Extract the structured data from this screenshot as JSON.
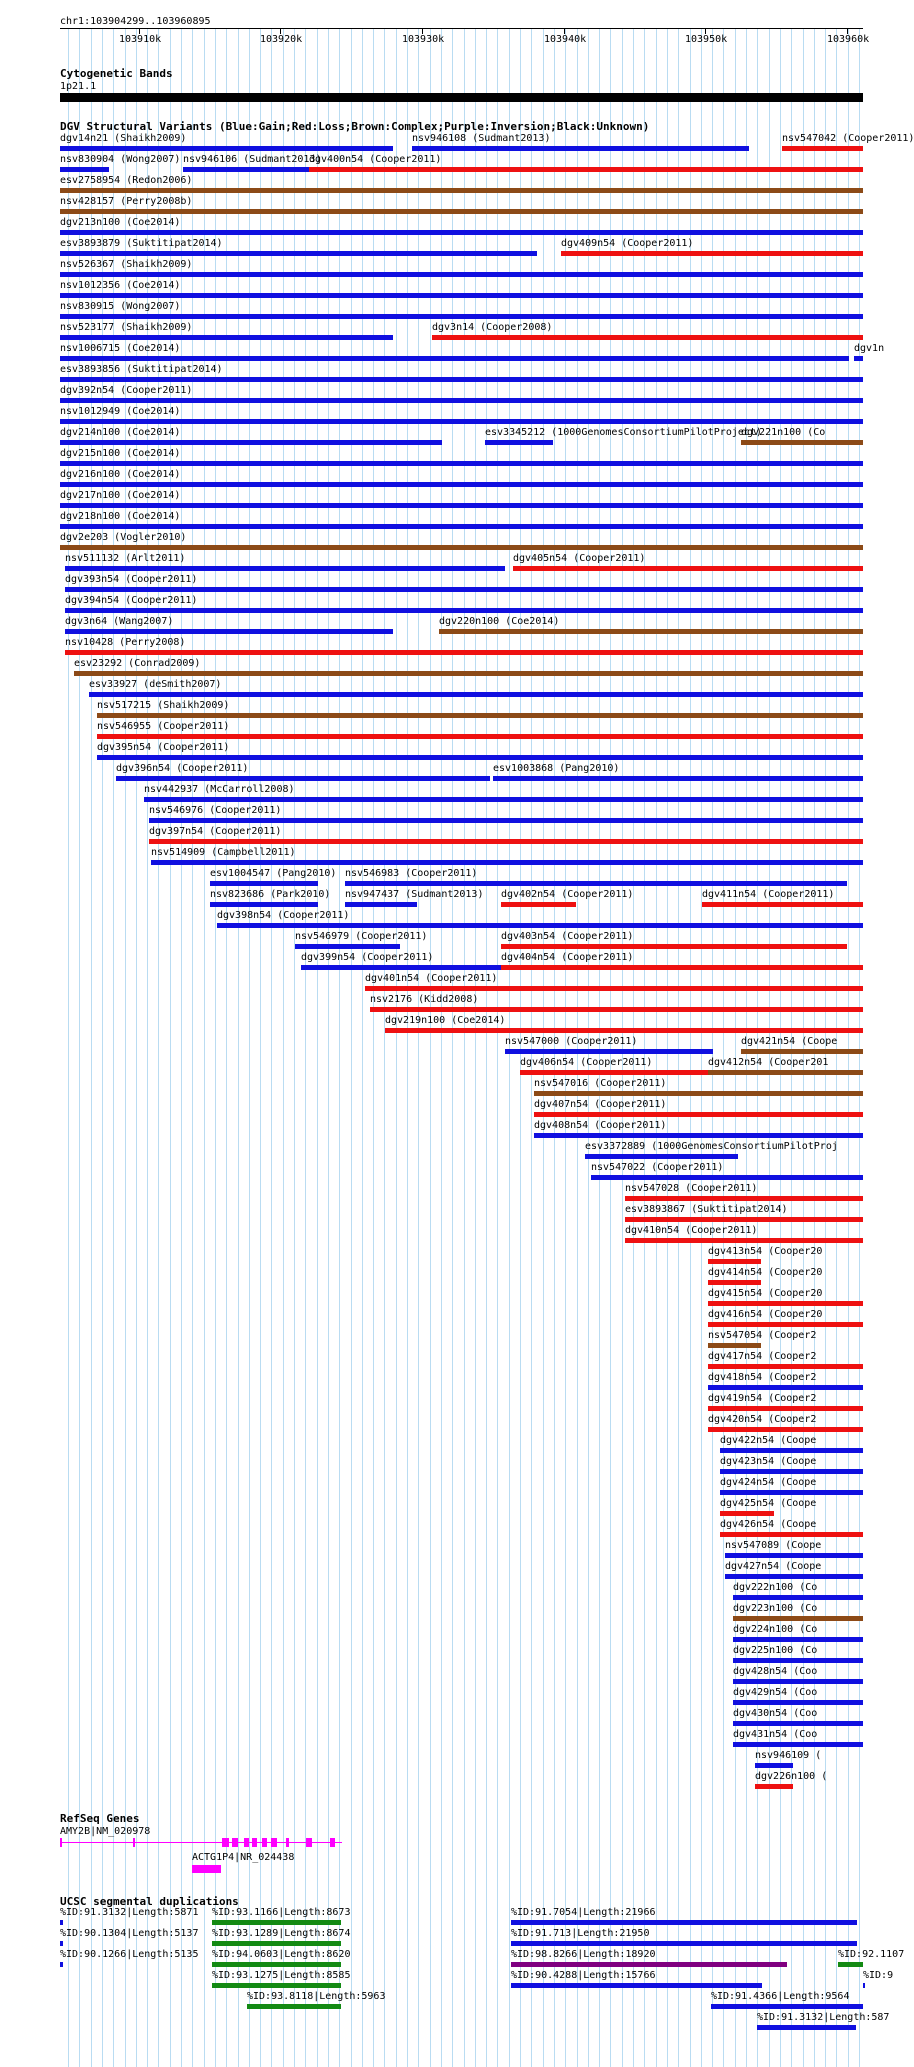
{
  "ruler": {
    "position": "chr1:103904299..103960895",
    "ticks": [
      "103910k",
      "103920k",
      "103930k",
      "103940k",
      "103950k",
      "103960k"
    ]
  },
  "cyto": {
    "title": "Cytogenetic Bands",
    "band": "1p21.1"
  },
  "dgv": {
    "title": "DGV Structural Variants (Blue:Gain;Red:Loss;Brown:Complex;Purple:Inversion;Black:Unknown)",
    "legend_colors": {
      "Gain": "#1010e0",
      "Loss": "#ee1111",
      "Complex": "#8c4a17",
      "Inversion": "#800080",
      "Unknown": "#000000"
    },
    "rows": [
      [
        {
          "label": "dgv14n21 (Shaikh2009)",
          "s": 0,
          "e": 37,
          "t": "Gain"
        },
        {
          "label": "nsv946108 (Sudmant2013)",
          "s": 39.1,
          "e": 76.5,
          "t": "Gain"
        },
        {
          "label": "nsv547042 (Cooper2011)",
          "s": 80.1,
          "e": 89.1,
          "t": "Loss"
        }
      ],
      [
        {
          "label": "nsv830904 (Wong2007)",
          "s": 0,
          "e": 5.4,
          "t": "Gain"
        },
        {
          "label": "nsv946106 (Sudmant2013)",
          "s": 13.6,
          "e": 27.6,
          "t": "Gain"
        },
        {
          "label": "dgv400n54 (Cooper2011)",
          "s": 27.6,
          "e": 89.1,
          "t": "Loss"
        }
      ],
      [
        {
          "label": "esv2758954 (Redon2006)",
          "s": 0,
          "e": 89.1,
          "t": "Complex"
        }
      ],
      [
        {
          "label": "nsv428157 (Perry2008b)",
          "s": 0,
          "e": 89.1,
          "t": "Complex"
        }
      ],
      [
        {
          "label": "dgv213n100 (Coe2014)",
          "s": 0,
          "e": 89.1,
          "t": "Gain"
        }
      ],
      [
        {
          "label": "esv3893879 (Suktitipat2014)",
          "s": 0,
          "e": 52.9,
          "t": "Gain"
        },
        {
          "label": "dgv409n54 (Cooper2011)",
          "s": 55.6,
          "e": 89.1,
          "t": "Loss"
        }
      ],
      [
        {
          "label": "nsv526367 (Shaikh2009)",
          "s": 0,
          "e": 89.1,
          "t": "Gain"
        }
      ],
      [
        {
          "label": "nsv1012356 (Coe2014)",
          "s": 0,
          "e": 89.1,
          "t": "Gain"
        }
      ],
      [
        {
          "label": "nsv830915 (Wong2007)",
          "s": 0,
          "e": 89.1,
          "t": "Gain"
        }
      ],
      [
        {
          "label": "nsv523177 (Shaikh2009)",
          "s": 0,
          "e": 37,
          "t": "Gain"
        },
        {
          "label": "dgv3n14 (Cooper2008)",
          "s": 41.3,
          "e": 89.1,
          "t": "Loss"
        }
      ],
      [
        {
          "label": "nsv1006715 (Coe2014)",
          "s": 0,
          "e": 87.6,
          "t": "Gain"
        },
        {
          "label": "dgv1n",
          "s": 88.1,
          "e": 89.1,
          "t": "Gain"
        }
      ],
      [
        {
          "label": "esv3893856 (Suktitipat2014)",
          "s": 0,
          "e": 89.1,
          "t": "Gain"
        }
      ],
      [
        {
          "label": "dgv392n54 (Cooper2011)",
          "s": 0,
          "e": 89.1,
          "t": "Gain"
        }
      ],
      [
        {
          "label": "nsv1012949 (Coe2014)",
          "s": 0,
          "e": 89.1,
          "t": "Gain"
        }
      ],
      [
        {
          "label": "dgv214n100 (Coe2014)",
          "s": 0,
          "e": 42.4,
          "t": "Gain"
        },
        {
          "label": "esv3345212 (1000GenomesConsortiumPilotProject)",
          "s": 47.2,
          "e": 54.7,
          "t": "Gain"
        },
        {
          "label": "dgv221n100 (Co",
          "s": 75.6,
          "e": 89.1,
          "t": "Complex"
        }
      ],
      [
        {
          "label": "dgv215n100 (Coe2014)",
          "s": 0,
          "e": 89.1,
          "t": "Gain"
        }
      ],
      [
        {
          "label": "dgv216n100 (Coe2014)",
          "s": 0,
          "e": 89.1,
          "t": "Gain"
        }
      ],
      [
        {
          "label": "dgv217n100 (Coe2014)",
          "s": 0,
          "e": 89.1,
          "t": "Gain"
        }
      ],
      [
        {
          "label": "dgv218n100 (Coe2014)",
          "s": 0,
          "e": 89.1,
          "t": "Gain"
        }
      ],
      [
        {
          "label": "dgv2e203 (Vogler2010)",
          "s": 0,
          "e": 89.1,
          "t": "Complex"
        }
      ],
      [
        {
          "label": "nsv511132 (Arlt2011)",
          "s": 0.6,
          "e": 49.4,
          "t": "Gain"
        },
        {
          "label": "dgv405n54 (Cooper2011)",
          "s": 50.3,
          "e": 89.1,
          "t": "Loss"
        }
      ],
      [
        {
          "label": "dgv393n54 (Cooper2011)",
          "s": 0.6,
          "e": 89.1,
          "t": "Gain"
        }
      ],
      [
        {
          "label": "dgv394n54 (Cooper2011)",
          "s": 0.6,
          "e": 89.1,
          "t": "Gain"
        }
      ],
      [
        {
          "label": "dgv3n64 (Wang2007)",
          "s": 0.6,
          "e": 37,
          "t": "Gain"
        },
        {
          "label": "dgv220n100 (Coe2014)",
          "s": 42.1,
          "e": 89.1,
          "t": "Complex"
        }
      ],
      [
        {
          "label": "nsv10428 (Perry2008)",
          "s": 0.6,
          "e": 89.1,
          "t": "Loss"
        }
      ],
      [
        {
          "label": "esv23292 (Conrad2009)",
          "s": 1.5,
          "e": 89.1,
          "t": "Complex"
        }
      ],
      [
        {
          "label": "esv33927 (deSmith2007)",
          "s": 3.2,
          "e": 89.1,
          "t": "Gain"
        }
      ],
      [
        {
          "label": "nsv517215 (Shaikh2009)",
          "s": 4.1,
          "e": 89.1,
          "t": "Complex"
        }
      ],
      [
        {
          "label": "nsv546955 (Cooper2011)",
          "s": 4.1,
          "e": 89.1,
          "t": "Loss"
        }
      ],
      [
        {
          "label": "dgv395n54 (Cooper2011)",
          "s": 4.1,
          "e": 89.1,
          "t": "Gain"
        }
      ],
      [
        {
          "label": "dgv396n54 (Cooper2011)",
          "s": 6.2,
          "e": 47.7,
          "t": "Gain"
        },
        {
          "label": "esv1003868 (Pang2010)",
          "s": 48.1,
          "e": 89.1,
          "t": "Gain"
        }
      ],
      [
        {
          "label": "nsv442937 (McCarroll2008)",
          "s": 9.3,
          "e": 89.1,
          "t": "Gain"
        }
      ],
      [
        {
          "label": "nsv546976 (Cooper2011)",
          "s": 9.9,
          "e": 89.1,
          "t": "Gain"
        }
      ],
      [
        {
          "label": "dgv397n54 (Cooper2011)",
          "s": 9.9,
          "e": 89.1,
          "t": "Loss"
        }
      ],
      [
        {
          "label": "nsv514909 (Campbell2011)",
          "s": 10.1,
          "e": 89.1,
          "t": "Gain"
        }
      ],
      [
        {
          "label": "esv1004547 (Pang2010)",
          "s": 16.6,
          "e": 28.6,
          "t": "Gain"
        },
        {
          "label": "nsv546983 (Cooper2011)",
          "s": 31.6,
          "e": 87.4,
          "t": "Gain"
        }
      ],
      [
        {
          "label": "nsv823686 (Park2010)",
          "s": 16.6,
          "e": 28.6,
          "t": "Gain"
        },
        {
          "label": "nsv947437 (Sudmant2013)",
          "s": 31.6,
          "e": 39.6,
          "t": "Gain"
        },
        {
          "label": "dgv402n54 (Cooper2011)",
          "s": 48.9,
          "e": 57.3,
          "t": "Loss"
        },
        {
          "label": "dgv411n54 (Cooper2011)",
          "s": 71.2,
          "e": 89.1,
          "t": "Loss"
        }
      ],
      [
        {
          "label": "dgv398n54 (Cooper2011)",
          "s": 17.4,
          "e": 89.1,
          "t": "Gain"
        }
      ],
      [
        {
          "label": "nsv546979 (Cooper2011)",
          "s": 26.1,
          "e": 37.7,
          "t": "Gain"
        },
        {
          "label": "dgv403n54 (Cooper2011)",
          "s": 48.9,
          "e": 87.4,
          "t": "Loss"
        }
      ],
      [
        {
          "label": "dgv399n54 (Cooper2011)",
          "s": 26.8,
          "e": 89.1,
          "t": "Gain"
        },
        {
          "label": "dgv404n54 (Cooper2011)",
          "s": 48.9,
          "e": 89.1,
          "t": "Loss"
        }
      ],
      [
        {
          "label": "dgv401n54 (Cooper2011)",
          "s": 33.9,
          "e": 89.1,
          "t": "Loss"
        }
      ],
      [
        {
          "label": "nsv2176 (Kidd2008)",
          "s": 34.4,
          "e": 89.1,
          "t": "Loss"
        }
      ],
      [
        {
          "label": "dgv219n100 (Coe2014)",
          "s": 36.1,
          "e": 89.1,
          "t": "Loss"
        }
      ],
      [
        {
          "label": "nsv547000 (Cooper2011)",
          "s": 49.4,
          "e": 72.5,
          "t": "Gain"
        },
        {
          "label": "dgv421n54 (Coope",
          "s": 75.6,
          "e": 89.1,
          "t": "Complex"
        }
      ],
      [
        {
          "label": "dgv406n54 (Cooper2011)",
          "s": 51,
          "e": 72.5,
          "t": "Loss"
        },
        {
          "label": "dgv412n54 (Cooper201",
          "s": 71.9,
          "e": 89.1,
          "t": "Complex"
        }
      ],
      [
        {
          "label": "nsv547016 (Cooper2011)",
          "s": 52.6,
          "e": 89.1,
          "t": "Complex"
        }
      ],
      [
        {
          "label": "dgv407n54 (Cooper2011)",
          "s": 52.6,
          "e": 89.1,
          "t": "Loss"
        }
      ],
      [
        {
          "label": "dgv408n54 (Cooper2011)",
          "s": 52.6,
          "e": 89.1,
          "t": "Gain"
        }
      ],
      [
        {
          "label": "esv3372889 (1000GenomesConsortiumPilotProj",
          "s": 58.3,
          "e": 75.2,
          "t": "Gain"
        }
      ],
      [
        {
          "label": "nsv547022 (Cooper2011)",
          "s": 58.9,
          "e": 89.1,
          "t": "Gain"
        }
      ],
      [
        {
          "label": "nsv547028 (Cooper2011)",
          "s": 62.7,
          "e": 89.1,
          "t": "Loss"
        }
      ],
      [
        {
          "label": "esv3893867 (Suktitipat2014)",
          "s": 62.7,
          "e": 89.1,
          "t": "Loss"
        }
      ],
      [
        {
          "label": "dgv410n54 (Cooper2011)",
          "s": 62.7,
          "e": 89.1,
          "t": "Loss"
        }
      ],
      [
        {
          "label": "dgv413n54 (Cooper20",
          "s": 71.9,
          "e": 77.8,
          "t": "Loss"
        }
      ],
      [
        {
          "label": "dgv414n54 (Cooper20",
          "s": 71.9,
          "e": 77.8,
          "t": "Loss"
        }
      ],
      [
        {
          "label": "dgv415n54 (Cooper20",
          "s": 71.9,
          "e": 89.1,
          "t": "Loss"
        }
      ],
      [
        {
          "label": "dgv416n54 (Cooper20",
          "s": 71.9,
          "e": 89.1,
          "t": "Loss"
        }
      ],
      [
        {
          "label": "nsv547054 (Cooper2",
          "s": 71.9,
          "e": 77.8,
          "t": "Complex"
        }
      ],
      [
        {
          "label": "dgv417n54 (Cooper2",
          "s": 71.9,
          "e": 89.1,
          "t": "Loss"
        }
      ],
      [
        {
          "label": "dgv418n54 (Cooper2",
          "s": 71.9,
          "e": 89.1,
          "t": "Gain"
        }
      ],
      [
        {
          "label": "dgv419n54 (Cooper2",
          "s": 71.9,
          "e": 89.1,
          "t": "Loss"
        }
      ],
      [
        {
          "label": "dgv420n54 (Cooper2",
          "s": 71.9,
          "e": 89.1,
          "t": "Loss"
        }
      ],
      [
        {
          "label": "dgv422n54 (Coope",
          "s": 73.3,
          "e": 89.1,
          "t": "Gain"
        }
      ],
      [
        {
          "label": "dgv423n54 (Coope",
          "s": 73.3,
          "e": 89.1,
          "t": "Gain"
        }
      ],
      [
        {
          "label": "dgv424n54 (Coope",
          "s": 73.3,
          "e": 89.1,
          "t": "Gain"
        }
      ],
      [
        {
          "label": "dgv425n54 (Coope",
          "s": 73.3,
          "e": 79.2,
          "t": "Loss"
        }
      ],
      [
        {
          "label": "dgv426n54 (Coope",
          "s": 73.3,
          "e": 89.1,
          "t": "Loss"
        }
      ],
      [
        {
          "label": "nsv547089 (Coope",
          "s": 73.8,
          "e": 89.1,
          "t": "Gain"
        }
      ],
      [
        {
          "label": "dgv427n54 (Coope",
          "s": 73.8,
          "e": 89.1,
          "t": "Gain"
        }
      ],
      [
        {
          "label": "dgv222n100 (Co",
          "s": 74.7,
          "e": 89.1,
          "t": "Gain"
        }
      ],
      [
        {
          "label": "dgv223n100 (Co",
          "s": 74.7,
          "e": 89.1,
          "t": "Complex"
        }
      ],
      [
        {
          "label": "dgv224n100 (Co",
          "s": 74.7,
          "e": 89.1,
          "t": "Gain"
        }
      ],
      [
        {
          "label": "dgv225n100 (Co",
          "s": 74.7,
          "e": 89.1,
          "t": "Gain"
        }
      ],
      [
        {
          "label": "dgv428n54 (Coo",
          "s": 74.7,
          "e": 89.1,
          "t": "Gain"
        }
      ],
      [
        {
          "label": "dgv429n54 (Coo",
          "s": 74.7,
          "e": 89.1,
          "t": "Gain"
        }
      ],
      [
        {
          "label": "dgv430n54 (Coo",
          "s": 74.7,
          "e": 89.1,
          "t": "Gain"
        }
      ],
      [
        {
          "label": "dgv431n54 (Coo",
          "s": 74.7,
          "e": 89.1,
          "t": "Gain"
        }
      ],
      [
        {
          "label": "nsv946109 (",
          "s": 77.1,
          "e": 81.4,
          "t": "Gain"
        }
      ],
      [
        {
          "label": "dgv226n100 (",
          "s": 77.1,
          "e": 81.4,
          "t": "Loss"
        }
      ]
    ]
  },
  "refseq": {
    "title": "RefSeq Genes",
    "genes": [
      {
        "label": "AMY2B|NM_020978",
        "s": 0,
        "e": 31.3,
        "color": "#ff00ff"
      },
      {
        "label": "ACTG1P4|NR_024438",
        "s": 14.7,
        "e": 18.2,
        "color": "#ff00ff"
      }
    ]
  },
  "segdup": {
    "title": "UCSC segmental duplications",
    "items": [
      {
        "label": "%ID:91.3132|Length:5871",
        "s": 0,
        "e": 0.3,
        "t": "Gain",
        "row": 0
      },
      {
        "label": "%ID:93.1166|Length:8673",
        "s": 16.9,
        "e": 31.2,
        "t": "Green",
        "row": 0
      },
      {
        "label": "%ID:91.7054|Length:21966",
        "s": 50,
        "e": 88.5,
        "t": "Gain",
        "row": 0
      },
      {
        "label": "%ID:90.1304|Length:5137",
        "s": 0,
        "e": 0.3,
        "t": "Gain",
        "row": 1
      },
      {
        "label": "%ID:93.1289|Length:8674",
        "s": 16.9,
        "e": 31.2,
        "t": "Green",
        "row": 1
      },
      {
        "label": "%ID:91.713|Length:21950",
        "s": 50,
        "e": 88.5,
        "t": "Gain",
        "row": 1
      },
      {
        "label": "%ID:90.1266|Length:5135",
        "s": 0,
        "e": 0.3,
        "t": "Gain",
        "row": 2
      },
      {
        "label": "%ID:94.0603|Length:8620",
        "s": 16.9,
        "e": 31.2,
        "t": "Green",
        "row": 2
      },
      {
        "label": "%ID:98.8266|Length:18920",
        "s": 50,
        "e": 80.7,
        "t": "Inversion",
        "row": 2
      },
      {
        "label": "%ID:92.1107",
        "s": 86.4,
        "e": 89.1,
        "t": "Green",
        "row": 2
      },
      {
        "label": "%ID:93.1275|Length:8585",
        "s": 16.9,
        "e": 31.2,
        "t": "Green",
        "row": 3
      },
      {
        "label": "%ID:90.4288|Length:15766",
        "s": 50,
        "e": 77.9,
        "t": "Gain",
        "row": 3
      },
      {
        "label": "%ID:9",
        "s": 89.1,
        "e": 89.1,
        "t": "Gain",
        "row": 3
      },
      {
        "label": "%ID:93.8118|Length:5963",
        "s": 20.8,
        "e": 31.2,
        "t": "Green",
        "row": 4
      },
      {
        "label": "%ID:91.4366|Length:9564",
        "s": 72.2,
        "e": 89.1,
        "t": "Gain",
        "row": 4
      },
      {
        "label": "%ID:91.3132|Length:587",
        "s": 77.4,
        "e": 88.4,
        "t": "Gain",
        "row": 5
      }
    ]
  }
}
